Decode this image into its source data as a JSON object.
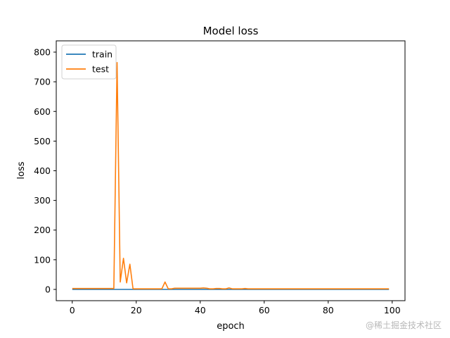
{
  "chart_data": {
    "type": "line",
    "title": "Model loss",
    "xlabel": "epoch",
    "ylabel": "loss",
    "xlim": [
      -5,
      104
    ],
    "ylim": [
      -38,
      838
    ],
    "xticks": [
      0,
      20,
      40,
      60,
      80,
      100
    ],
    "yticks": [
      0,
      100,
      200,
      300,
      400,
      500,
      600,
      700,
      800
    ],
    "grid": false,
    "legend": {
      "placement": "upper left"
    },
    "series": [
      {
        "name": "train",
        "color": "#1f77b4",
        "x": [
          0,
          1,
          2,
          3,
          4,
          5,
          6,
          7,
          8,
          9,
          10,
          11,
          12,
          13,
          14,
          15,
          16,
          17,
          18,
          19,
          20,
          21,
          22,
          23,
          24,
          25,
          26,
          27,
          28,
          29,
          30,
          31,
          32,
          33,
          34,
          35,
          36,
          37,
          38,
          39,
          40,
          41,
          42,
          43,
          44,
          45,
          46,
          47,
          48,
          49,
          50,
          51,
          52,
          53,
          54,
          55,
          56,
          57,
          58,
          59,
          60,
          61,
          62,
          63,
          64,
          65,
          66,
          67,
          68,
          69,
          70,
          71,
          72,
          73,
          74,
          75,
          76,
          77,
          78,
          79,
          80,
          81,
          82,
          83,
          84,
          85,
          86,
          87,
          88,
          89,
          90,
          91,
          92,
          93,
          94,
          95,
          96,
          97,
          98,
          99
        ],
        "y": [
          0,
          0,
          0,
          0,
          0,
          0,
          0,
          0,
          0,
          0,
          0,
          0,
          0,
          0,
          0,
          0,
          0,
          0,
          0,
          0,
          0,
          0,
          0,
          0,
          0,
          0,
          0,
          0,
          0,
          0,
          0,
          0,
          0,
          0,
          0,
          0,
          0,
          0,
          0,
          0,
          0,
          0,
          0,
          0,
          0,
          0,
          0,
          0,
          0,
          0,
          0,
          0,
          0,
          0,
          0,
          0,
          0,
          0,
          0,
          0,
          0,
          0,
          0,
          0,
          0,
          0,
          0,
          0,
          0,
          0,
          0,
          0,
          0,
          0,
          0,
          0,
          0,
          0,
          0,
          0,
          0,
          0,
          0,
          0,
          0,
          0,
          0,
          0,
          0,
          0,
          0,
          0,
          0,
          0,
          0,
          0,
          0,
          0,
          0,
          0
        ]
      },
      {
        "name": "test",
        "color": "#ff7f0e",
        "x": [
          0,
          1,
          2,
          3,
          4,
          5,
          6,
          7,
          8,
          9,
          10,
          11,
          12,
          13,
          14,
          15,
          16,
          17,
          18,
          19,
          20,
          21,
          22,
          23,
          24,
          25,
          26,
          27,
          28,
          29,
          30,
          31,
          32,
          33,
          34,
          35,
          36,
          37,
          38,
          39,
          40,
          41,
          42,
          43,
          44,
          45,
          46,
          47,
          48,
          49,
          50,
          51,
          52,
          53,
          54,
          55,
          56,
          57,
          58,
          59,
          60,
          61,
          62,
          63,
          64,
          65,
          66,
          67,
          68,
          69,
          70,
          71,
          72,
          73,
          74,
          75,
          76,
          77,
          78,
          79,
          80,
          81,
          82,
          83,
          84,
          85,
          86,
          87,
          88,
          89,
          90,
          91,
          92,
          93,
          94,
          95,
          96,
          97,
          98,
          99
        ],
        "y": [
          3,
          3,
          3,
          3,
          3,
          3,
          3,
          3,
          3,
          3,
          3,
          3,
          3,
          3,
          765,
          25,
          105,
          22,
          85,
          2,
          2,
          2,
          2,
          2,
          2,
          2,
          2,
          2,
          2,
          25,
          2,
          2,
          4,
          4,
          4,
          4,
          4,
          4,
          4,
          4,
          4,
          5,
          4,
          2,
          2,
          3,
          3,
          2,
          2,
          5,
          2,
          2,
          2,
          2,
          3,
          2,
          2,
          2,
          2,
          2,
          2,
          2,
          2,
          2,
          2,
          2,
          2,
          2,
          2,
          2,
          2,
          2,
          2,
          2,
          2,
          2,
          2,
          2,
          2,
          2,
          2,
          2,
          2,
          2,
          2,
          2,
          2,
          2,
          2,
          2,
          2,
          2,
          2,
          2,
          2,
          2,
          2,
          2,
          2,
          2
        ]
      }
    ]
  },
  "watermark": "@稀土掘金技术社区"
}
